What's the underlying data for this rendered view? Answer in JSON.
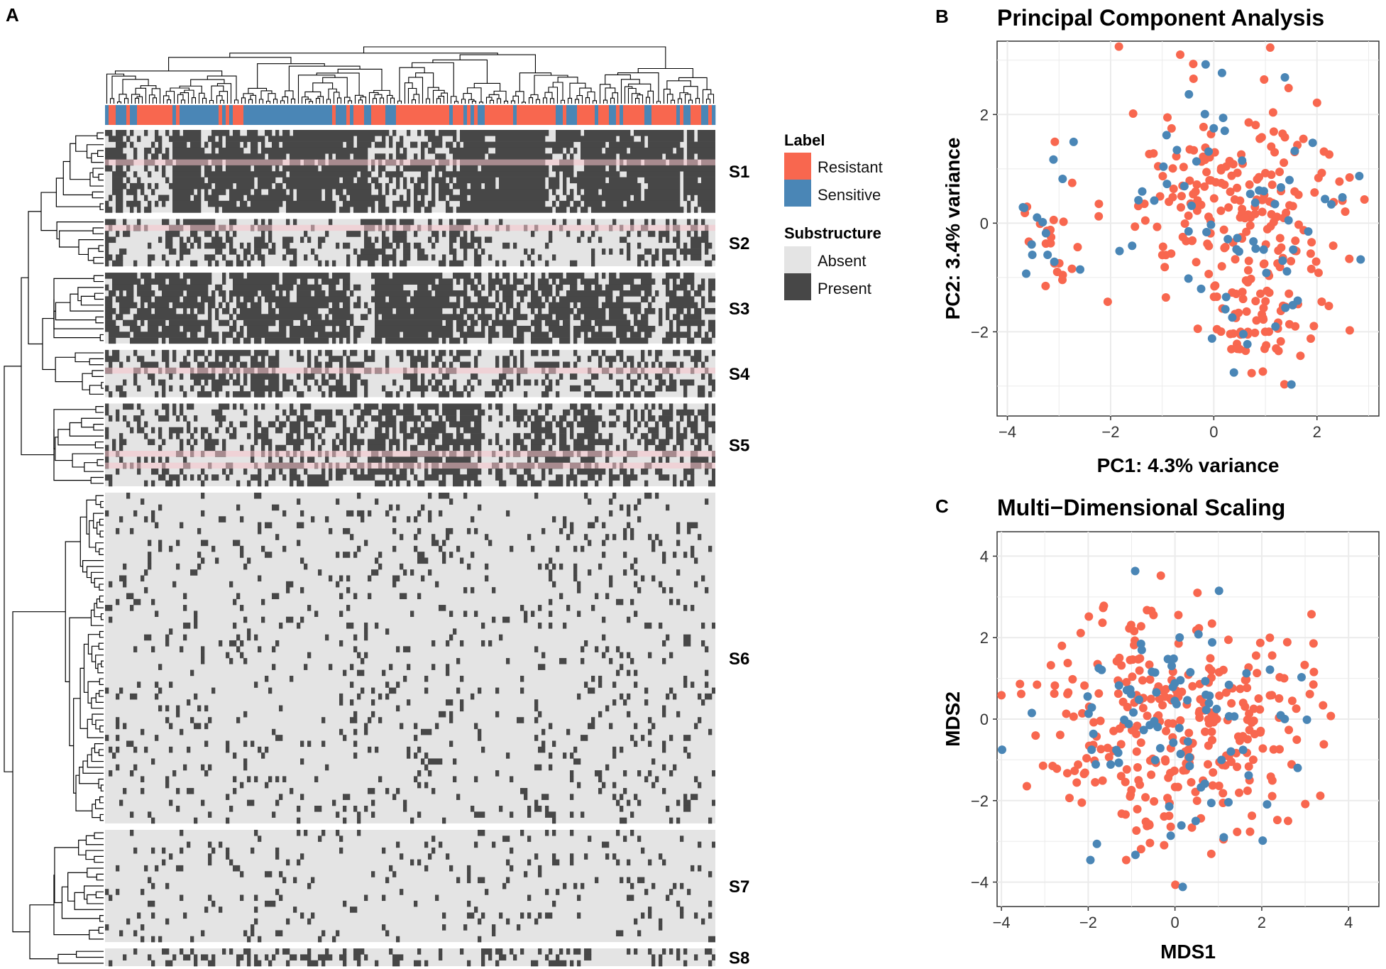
{
  "colors": {
    "resistant": "#f8674f",
    "sensitive": "#4a86b6",
    "absent": "#e4e4e4",
    "present": "#474747",
    "highlight": "#f7c2cb",
    "grid": "#ebebeb"
  },
  "panel_a": {
    "label": "A",
    "legend": {
      "label_title": "Label",
      "label_items": [
        {
          "name": "Resistant",
          "color": "#f8674f"
        },
        {
          "name": "Sensitive",
          "color": "#4a86b6"
        }
      ],
      "substructure_title": "Substructure",
      "substructure_items": [
        {
          "name": "Absent",
          "color": "#e4e4e4"
        },
        {
          "name": "Present",
          "color": "#474747"
        }
      ]
    },
    "clusters": [
      {
        "name": "S1",
        "rows": 14,
        "density": 0.74,
        "highlight_rows": [
          5
        ]
      },
      {
        "name": "S2",
        "rows": 8,
        "density": 0.42,
        "highlight_rows": [
          1
        ]
      },
      {
        "name": "S3",
        "rows": 12,
        "density": 0.58,
        "highlight_rows": []
      },
      {
        "name": "S4",
        "rows": 8,
        "density": 0.52,
        "highlight_rows": [
          3
        ]
      },
      {
        "name": "S5",
        "rows": 14,
        "density": 0.55,
        "highlight_rows": [
          8,
          10
        ]
      },
      {
        "name": "S6",
        "rows": 56,
        "density": 0.08,
        "highlight_rows": []
      },
      {
        "name": "S7",
        "rows": 19,
        "density": 0.07,
        "highlight_rows": []
      },
      {
        "name": "S8",
        "rows": 3,
        "density": 0.28,
        "highlight_rows": []
      }
    ]
  },
  "chart_data": [
    {
      "panel": "B",
      "type": "scatter",
      "title": "Principal Component Analysis",
      "xlabel": "PC1: 4.3% variance",
      "ylabel": "PC2: 3.4% variance",
      "xlim": [
        -4.2,
        3.2
      ],
      "ylim": [
        -3.55,
        3.35
      ],
      "xticks": [
        -4,
        -2,
        0,
        2
      ],
      "yticks": [
        -2,
        0,
        2
      ],
      "series": [
        {
          "name": "Resistant",
          "n": 280,
          "seed": 11
        },
        {
          "name": "Sensitive",
          "n": 80,
          "seed": 23
        }
      ]
    },
    {
      "panel": "C",
      "type": "scatter",
      "title": "Multi−Dimensional Scaling",
      "xlabel": "MDS1",
      "ylabel": "MDS2",
      "xlim": [
        -4.1,
        4.7
      ],
      "ylim": [
        -4.6,
        4.6
      ],
      "xticks": [
        -4,
        -2,
        0,
        2,
        4
      ],
      "yticks": [
        -4,
        -2,
        0,
        2,
        4
      ],
      "series": [
        {
          "name": "Resistant",
          "n": 300,
          "seed": 37
        },
        {
          "name": "Sensitive",
          "n": 90,
          "seed": 53
        }
      ]
    }
  ]
}
